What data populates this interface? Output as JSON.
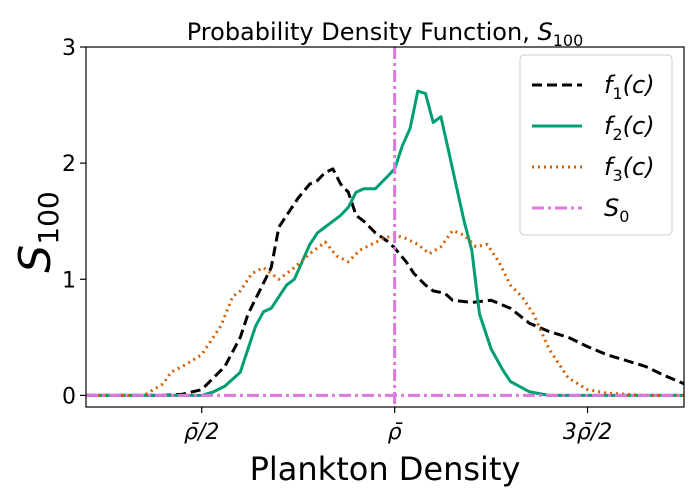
{
  "chart_data": {
    "type": "line",
    "title_main": "Probability Density Function, ",
    "title_sym": "S",
    "title_sub": "100",
    "xlabel": "Plankton Density",
    "ylabel_sym": "S",
    "ylabel_sub": "100",
    "xlim": [
      0.2,
      1.75
    ],
    "ylim": [
      -0.1,
      3
    ],
    "x_ticks": [
      {
        "value": 0.5,
        "label": "ρ̄/2"
      },
      {
        "value": 1.0,
        "label": "ρ̄"
      },
      {
        "value": 1.5,
        "label": "3ρ̄/2"
      }
    ],
    "y_ticks": [
      {
        "value": 0,
        "label": "0"
      },
      {
        "value": 1,
        "label": "1"
      },
      {
        "value": 2,
        "label": "2"
      },
      {
        "value": 3,
        "label": "3"
      }
    ],
    "legend_position": "top-right",
    "series": [
      {
        "name": "f",
        "name_sub": "1",
        "name_arg": "(c)",
        "color": "#000000",
        "dash": "dashed",
        "x": [
          0.2,
          0.3,
          0.4,
          0.45,
          0.5,
          0.53,
          0.56,
          0.6,
          0.62,
          0.65,
          0.68,
          0.7,
          0.73,
          0.75,
          0.78,
          0.8,
          0.82,
          0.84,
          0.86,
          0.88,
          0.9,
          0.92,
          0.95,
          0.98,
          1.0,
          1.03,
          1.05,
          1.08,
          1.1,
          1.13,
          1.15,
          1.2,
          1.25,
          1.3,
          1.35,
          1.4,
          1.45,
          1.5,
          1.55,
          1.6,
          1.65,
          1.7,
          1.75
        ],
        "y": [
          0,
          0,
          0,
          0.01,
          0.05,
          0.15,
          0.25,
          0.5,
          0.7,
          0.9,
          1.1,
          1.45,
          1.6,
          1.7,
          1.82,
          1.85,
          1.92,
          1.95,
          1.82,
          1.75,
          1.55,
          1.5,
          1.4,
          1.33,
          1.27,
          1.15,
          1.05,
          0.95,
          0.9,
          0.88,
          0.82,
          0.8,
          0.82,
          0.75,
          0.62,
          0.55,
          0.5,
          0.42,
          0.35,
          0.3,
          0.25,
          0.17,
          0.1
        ]
      },
      {
        "name": "f",
        "name_sub": "2",
        "name_arg": "(c)",
        "color": "#009e73",
        "dash": "solid",
        "x": [
          0.2,
          0.5,
          0.53,
          0.56,
          0.6,
          0.62,
          0.64,
          0.66,
          0.68,
          0.7,
          0.72,
          0.74,
          0.76,
          0.78,
          0.8,
          0.82,
          0.84,
          0.86,
          0.88,
          0.9,
          0.92,
          0.95,
          0.98,
          1.0,
          1.02,
          1.04,
          1.06,
          1.08,
          1.1,
          1.12,
          1.14,
          1.16,
          1.18,
          1.2,
          1.22,
          1.25,
          1.28,
          1.3,
          1.35,
          1.4,
          1.75
        ],
        "y": [
          0,
          0,
          0.03,
          0.08,
          0.2,
          0.4,
          0.6,
          0.72,
          0.75,
          0.85,
          0.95,
          1.0,
          1.15,
          1.3,
          1.4,
          1.45,
          1.5,
          1.55,
          1.62,
          1.75,
          1.78,
          1.78,
          1.88,
          1.95,
          2.15,
          2.3,
          2.62,
          2.6,
          2.35,
          2.4,
          2.1,
          1.8,
          1.5,
          1.25,
          0.7,
          0.4,
          0.22,
          0.12,
          0.03,
          0.0,
          0.0
        ]
      },
      {
        "name": "f",
        "name_sub": "3",
        "name_arg": "(c)",
        "color": "#d55e00",
        "dash": "dotted",
        "x": [
          0.2,
          0.35,
          0.4,
          0.42,
          0.45,
          0.5,
          0.55,
          0.58,
          0.6,
          0.63,
          0.66,
          0.7,
          0.74,
          0.78,
          0.82,
          0.85,
          0.88,
          0.91,
          0.94,
          0.97,
          1.0,
          1.03,
          1.06,
          1.09,
          1.12,
          1.15,
          1.18,
          1.21,
          1.24,
          1.27,
          1.3,
          1.33,
          1.36,
          1.4,
          1.45,
          1.5,
          1.55,
          1.6,
          1.65,
          1.75
        ],
        "y": [
          0,
          0,
          0.1,
          0.2,
          0.25,
          0.35,
          0.6,
          0.85,
          0.9,
          1.05,
          1.1,
          1.0,
          1.1,
          1.22,
          1.32,
          1.2,
          1.15,
          1.25,
          1.3,
          1.35,
          1.38,
          1.35,
          1.3,
          1.22,
          1.28,
          1.42,
          1.38,
          1.28,
          1.3,
          1.15,
          0.95,
          0.85,
          0.7,
          0.4,
          0.15,
          0.05,
          0.02,
          0.01,
          0.0,
          0.0
        ]
      },
      {
        "name": "S",
        "name_sub": "0",
        "name_arg": "",
        "color": "#dd77dd",
        "dash": "dashdot",
        "x": [
          0.2,
          1.75
        ],
        "y": [
          0,
          0
        ],
        "vline": 1.0
      }
    ]
  }
}
